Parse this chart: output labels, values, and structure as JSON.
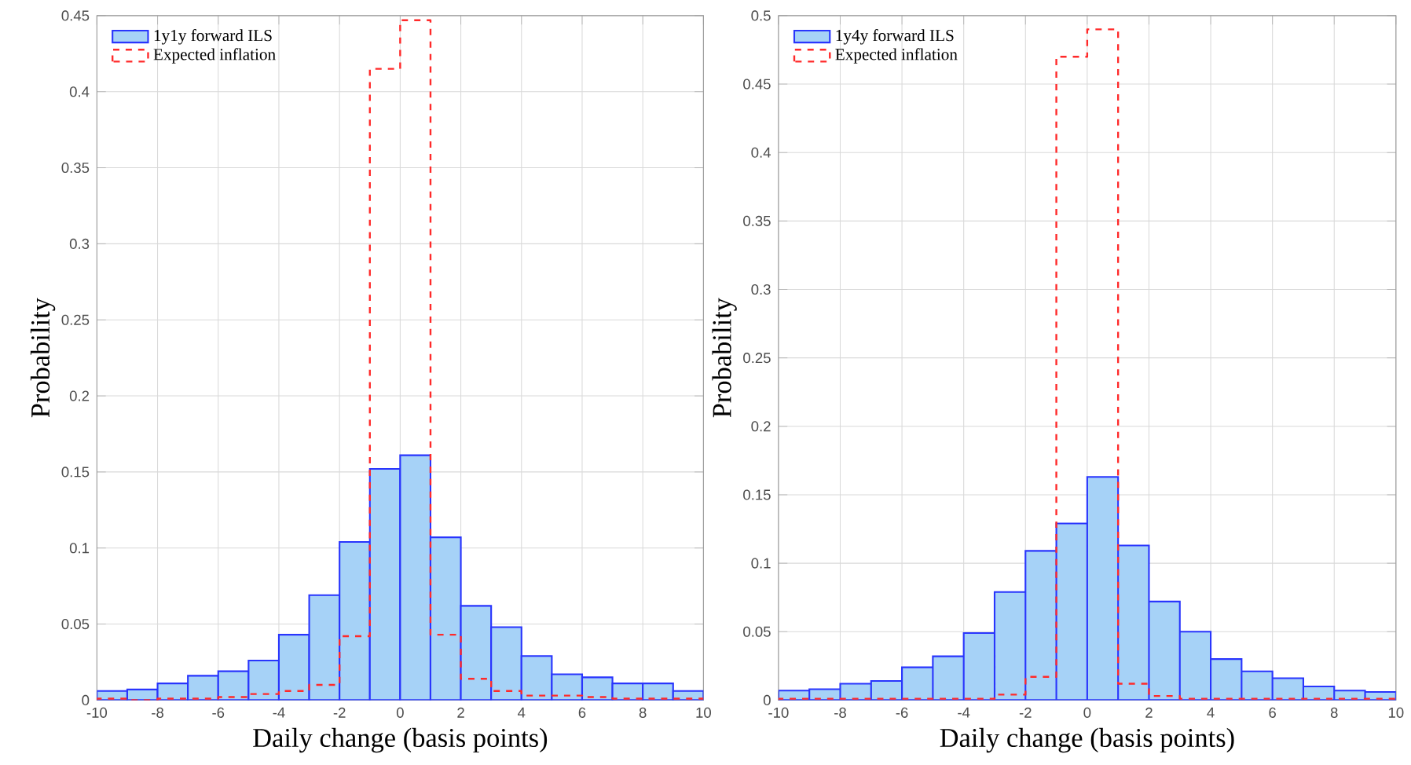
{
  "chart_data": [
    {
      "type": "histogram",
      "xlabel": "Daily change (basis points)",
      "ylabel": "Probability",
      "bins": [
        -10,
        -9,
        -8,
        -7,
        -6,
        -5,
        -4,
        -3,
        -2,
        -1,
        0,
        1,
        2,
        3,
        4,
        5,
        6,
        7,
        8,
        9,
        10
      ],
      "series": [
        {
          "name": "1y1y forward ILS",
          "color": "#a6d2f7",
          "values": [
            0.006,
            0.007,
            0.011,
            0.016,
            0.019,
            0.026,
            0.043,
            0.069,
            0.104,
            0.152,
            0.161,
            0.107,
            0.062,
            0.048,
            0.029,
            0.017,
            0.015,
            0.011,
            0.011,
            0.006
          ]
        },
        {
          "name": "Expected inflation",
          "color": "#ff2a2a",
          "line_style": "dashed",
          "values": [
            0.001,
            0,
            0.001,
            0.001,
            0.002,
            0.004,
            0.006,
            0.01,
            0.042,
            0.415,
            0.447,
            0.043,
            0.014,
            0.006,
            0.003,
            0.003,
            0.002,
            0.001,
            0.001,
            0.001
          ]
        }
      ],
      "xlim": [
        -10,
        10
      ],
      "xticks": [
        -10,
        -8,
        -6,
        -4,
        -2,
        0,
        2,
        4,
        6,
        8,
        10
      ],
      "ylim": [
        0,
        0.45
      ],
      "yticks": [
        0,
        0.05,
        0.1,
        0.15,
        0.2,
        0.25,
        0.3,
        0.35,
        0.4,
        0.45
      ],
      "grid": true,
      "legend": "top left"
    },
    {
      "type": "histogram",
      "xlabel": "Daily change (basis points)",
      "ylabel": "Probability",
      "bins": [
        -10,
        -9,
        -8,
        -7,
        -6,
        -5,
        -4,
        -3,
        -2,
        -1,
        0,
        1,
        2,
        3,
        4,
        5,
        6,
        7,
        8,
        9,
        10
      ],
      "series": [
        {
          "name": "1y4y forward ILS",
          "color": "#a6d2f7",
          "values": [
            0.007,
            0.008,
            0.012,
            0.014,
            0.024,
            0.032,
            0.049,
            0.079,
            0.109,
            0.129,
            0.163,
            0.113,
            0.072,
            0.05,
            0.03,
            0.021,
            0.016,
            0.01,
            0.007,
            0.006
          ]
        },
        {
          "name": "Expected inflation",
          "color": "#ff2a2a",
          "line_style": "dashed",
          "values": [
            0.001,
            0.001,
            0.001,
            0.001,
            0.001,
            0.001,
            0.001,
            0.004,
            0.017,
            0.47,
            0.49,
            0.012,
            0.003,
            0.001,
            0.001,
            0.001,
            0.001,
            0.001,
            0.001,
            0.001
          ]
        }
      ],
      "xlim": [
        -10,
        10
      ],
      "xticks": [
        -10,
        -8,
        -6,
        -4,
        -2,
        0,
        2,
        4,
        6,
        8,
        10
      ],
      "ylim": [
        0,
        0.5
      ],
      "yticks": [
        0,
        0.05,
        0.1,
        0.15,
        0.2,
        0.25,
        0.3,
        0.35,
        0.4,
        0.45,
        0.5
      ],
      "grid": true,
      "legend": "top left"
    }
  ]
}
